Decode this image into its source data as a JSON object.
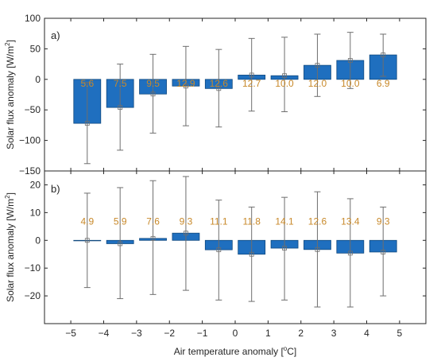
{
  "colors": {
    "bar_fill": "#1f6fbf",
    "bar_edge": "#10497f",
    "errorbar": "#6e6e6e",
    "label": "#c8892a",
    "axis": "#262626",
    "text": "#262626"
  },
  "chart_data": [
    {
      "type": "bar",
      "panel_label": "a)",
      "ylabel_main": "Solar flux anomaly [W/m",
      "ylabel_sup": "2",
      "ylabel_end": "]",
      "ylim": [
        -150,
        100
      ],
      "yticks": [
        -150,
        -100,
        -50,
        0,
        50,
        100
      ],
      "ytick_labels": [
        "−150",
        "−100",
        "−50",
        "0",
        "50",
        "100"
      ],
      "grid": false,
      "x": [
        -4.5,
        -3.5,
        -2.5,
        -1.5,
        -0.5,
        0.5,
        1.5,
        2.5,
        3.5,
        4.5
      ],
      "values": [
        -72,
        -46,
        -24,
        -11,
        -15,
        7,
        6,
        23,
        31,
        40
      ],
      "err_low": [
        -138,
        -116,
        -88,
        -76,
        -78,
        -52,
        -53,
        -28,
        -15,
        5
      ],
      "err_high": [
        -5,
        25,
        41,
        54,
        49,
        67,
        69,
        74,
        77,
        74
      ],
      "bar_labels": [
        "5.6",
        "7.5",
        "9.5",
        "12.9",
        "12.6",
        "12.7",
        "10.0",
        "12.0",
        "10.0",
        "6.9"
      ]
    },
    {
      "type": "bar",
      "panel_label": "b)",
      "ylabel_main": "Solar flux anomaly [W/m",
      "ylabel_sup": "2",
      "ylabel_end": "]",
      "ylim": [
        -30,
        25
      ],
      "yticks": [
        -20,
        -10,
        0,
        10,
        20
      ],
      "ytick_labels": [
        "−20",
        "−10",
        "0",
        "10",
        "20"
      ],
      "grid": false,
      "x": [
        -4.5,
        -3.5,
        -2.5,
        -1.5,
        -0.5,
        0.5,
        1.5,
        2.5,
        3.5,
        4.5
      ],
      "values": [
        0,
        -1.2,
        0.7,
        2.6,
        -3.4,
        -5.0,
        -2.8,
        -3.3,
        -4.6,
        -4.2
      ],
      "err_low": [
        -17,
        -21,
        -19.5,
        -18,
        -21.5,
        -22,
        -21.5,
        -24,
        -24,
        -20
      ],
      "err_high": [
        17,
        19,
        21.5,
        23,
        14.5,
        12,
        15.5,
        17.5,
        15,
        12
      ],
      "bar_labels": [
        "4.9",
        "5.9",
        "7.6",
        "9.3",
        "11.1",
        "11.8",
        "14.1",
        "12.6",
        "13.4",
        "9.3"
      ],
      "xlabel_main": "Air temperature anomaly [",
      "xlabel_sup": "o",
      "xlabel_end": "C]",
      "xlim": [
        -5.8,
        5.8
      ],
      "xticks": [
        -5,
        -4,
        -3,
        -2,
        -1,
        0,
        1,
        2,
        3,
        4,
        5
      ],
      "xtick_labels": [
        "−5",
        "−4",
        "−3",
        "−2",
        "−1",
        "0",
        "1",
        "2",
        "3",
        "4",
        "5"
      ]
    }
  ]
}
